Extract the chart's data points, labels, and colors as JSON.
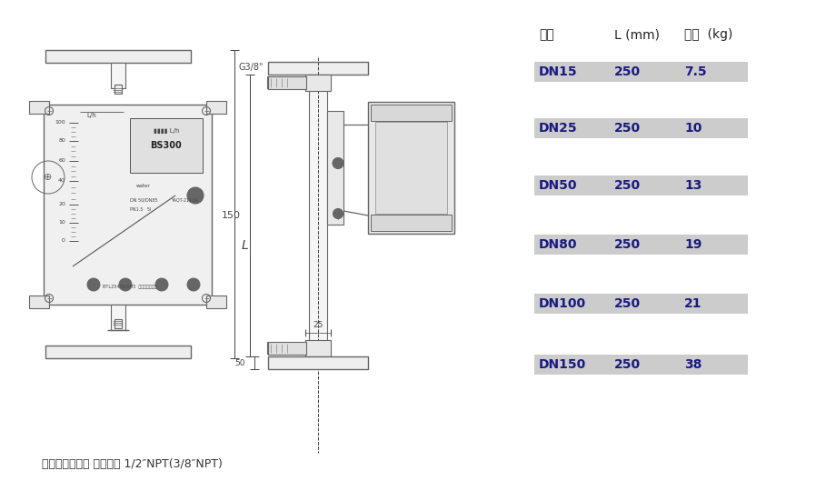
{
  "bg_color": "#ffffff",
  "table_header": [
    "口径",
    "L (mm)",
    "重量  (kg)"
  ],
  "table_rows": [
    [
      "DN15",
      "250",
      "7.5"
    ],
    [
      "DN25",
      "250",
      "10"
    ],
    [
      "DN50",
      "250",
      "13"
    ],
    [
      "DN80",
      "250",
      "19"
    ],
    [
      "DN100",
      "250",
      "21"
    ],
    [
      "DN150",
      "250",
      "38"
    ]
  ],
  "table_row_color": "#cccccc",
  "table_text_color": "#1a1a80",
  "caption": "（保温夹套型） 夹套接口 1/2″NPT(3/8″NPT)",
  "caption_color": "#333333",
  "line_color": "#555555",
  "dim_color": "#444444",
  "lc": "#666666"
}
